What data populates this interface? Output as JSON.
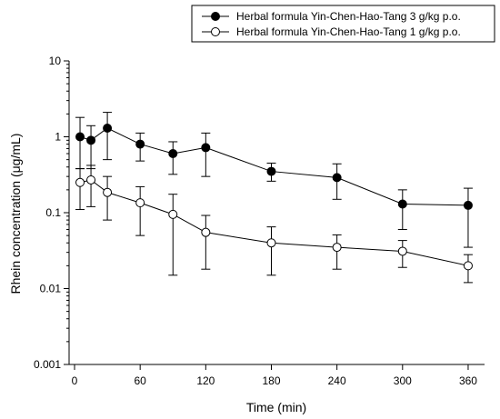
{
  "chart_data": {
    "type": "scatter",
    "title": "",
    "xlabel": "Time (min)",
    "ylabel": "Rhein concentration (μg/mL)",
    "xlim": [
      -5,
      375
    ],
    "ylim": [
      0.001,
      10
    ],
    "yscale": "log",
    "xticks": [
      0,
      60,
      120,
      180,
      240,
      300,
      360
    ],
    "xtick_labels": [
      "0",
      "60",
      "120",
      "180",
      "240",
      "300",
      "360"
    ],
    "yticks": [
      0.001,
      0.01,
      0.1,
      1,
      10
    ],
    "ytick_labels": [
      "0.001",
      "0.01",
      "0.1",
      "1",
      "10"
    ],
    "grid": false,
    "legend_position": "top-right",
    "series": [
      {
        "name": "Herbal formula Yin-Chen-Hao-Tang 3 g/kg p.o.",
        "marker": "filled-circle",
        "color": "#000000",
        "x": [
          5,
          15,
          30,
          60,
          90,
          120,
          180,
          240,
          300,
          360
        ],
        "y": [
          1.0,
          0.9,
          1.3,
          0.8,
          0.6,
          0.72,
          0.35,
          0.29,
          0.13,
          0.125
        ],
        "err_low": [
          0.38,
          0.38,
          0.5,
          0.48,
          0.32,
          0.3,
          0.26,
          0.15,
          0.06,
          0.035
        ],
        "err_high": [
          1.8,
          1.4,
          2.1,
          1.12,
          0.86,
          1.12,
          0.45,
          0.44,
          0.2,
          0.21
        ]
      },
      {
        "name": "Herbal formula Yin-Chen-Hao-Tang 1 g/kg p.o.",
        "marker": "open-circle",
        "color": "#000000",
        "x": [
          5,
          15,
          30,
          60,
          90,
          120,
          180,
          240,
          300,
          360
        ],
        "y": [
          0.25,
          0.27,
          0.185,
          0.135,
          0.095,
          0.055,
          0.04,
          0.035,
          0.031,
          0.02
        ],
        "err_low": [
          0.11,
          0.12,
          0.08,
          0.05,
          0.015,
          0.018,
          0.015,
          0.018,
          0.019,
          0.012
        ],
        "err_high": [
          0.38,
          0.42,
          0.3,
          0.22,
          0.175,
          0.092,
          0.065,
          0.051,
          0.043,
          0.028
        ]
      }
    ]
  }
}
